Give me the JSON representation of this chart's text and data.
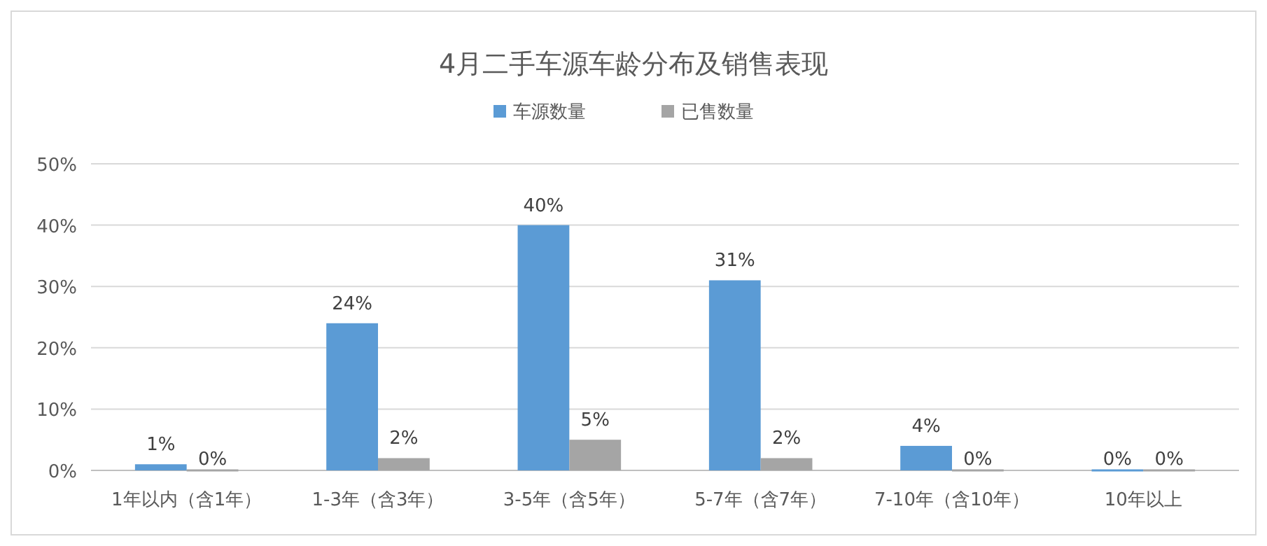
{
  "chart_data": {
    "type": "bar",
    "title": "4月二手车源车龄分布及销售表现",
    "categories": [
      "1年以内（含1年）",
      "1-3年（含3年）",
      "3-5年（含5年）",
      "5-7年（含7年）",
      "7-10年（含10年）",
      "10年以上"
    ],
    "series": [
      {
        "name": "车源数量",
        "color": "#5b9bd5",
        "values": [
          1,
          24,
          40,
          31,
          4,
          0
        ],
        "value_labels": [
          "1%",
          "24%",
          "40%",
          "31%",
          "4%",
          "0%"
        ]
      },
      {
        "name": "已售数量",
        "color": "#a5a5a5",
        "values": [
          0,
          2,
          5,
          2,
          0,
          0
        ],
        "value_labels": [
          "0%",
          "2%",
          "5%",
          "2%",
          "0%",
          "0%"
        ]
      }
    ],
    "ylim": [
      0,
      50
    ],
    "yticks": [
      {
        "value": 0,
        "label": "0%"
      },
      {
        "value": 10,
        "label": "10%"
      },
      {
        "value": 20,
        "label": "20%"
      },
      {
        "value": 30,
        "label": "30%"
      },
      {
        "value": 40,
        "label": "40%"
      },
      {
        "value": 50,
        "label": "50%"
      }
    ],
    "grid": "y",
    "legend": "top"
  }
}
